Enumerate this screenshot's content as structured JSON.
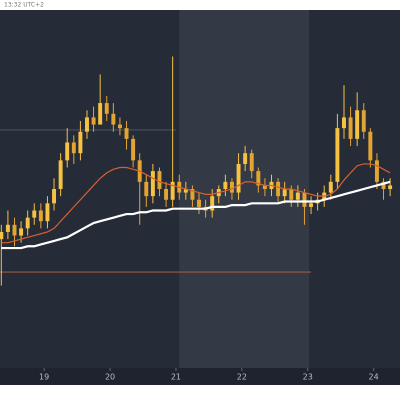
{
  "chart_data": {
    "type": "candlestick",
    "time_label": "13:32 UTC+2",
    "x": [
      18.35,
      18.45,
      18.55,
      18.65,
      18.75,
      18.85,
      18.95,
      19.05,
      19.15,
      19.25,
      19.35,
      19.45,
      19.55,
      19.65,
      19.75,
      19.85,
      19.95,
      20.05,
      20.15,
      20.25,
      20.35,
      20.45,
      20.55,
      20.65,
      20.75,
      20.85,
      20.95,
      21.05,
      21.15,
      21.25,
      21.35,
      21.45,
      21.55,
      21.65,
      21.75,
      21.85,
      21.95,
      22.05,
      22.15,
      22.25,
      22.35,
      22.45,
      22.55,
      22.65,
      22.75,
      22.85,
      22.95,
      23.05,
      23.15,
      23.25,
      23.35,
      23.45,
      23.55,
      23.65,
      23.75,
      23.85,
      23.95,
      24.05,
      24.15,
      24.25
    ],
    "open": [
      36,
      38,
      40,
      37,
      39,
      42,
      44,
      41,
      46,
      50,
      58,
      63,
      60,
      66,
      70,
      68,
      74,
      71,
      68,
      67,
      64,
      58,
      52,
      48,
      55,
      50,
      47,
      52,
      49,
      50,
      47,
      45,
      44,
      48,
      50,
      52,
      49,
      57,
      60,
      55,
      51,
      50,
      52,
      48,
      50,
      47,
      49,
      45,
      46,
      47,
      49,
      52,
      67,
      70,
      64,
      72,
      66,
      58,
      52,
      50
    ],
    "high": [
      40,
      44,
      42,
      41,
      44,
      46,
      46,
      48,
      53,
      60,
      67,
      65,
      69,
      72,
      73,
      82,
      76,
      74,
      70,
      69,
      65,
      60,
      54,
      57,
      56,
      52,
      87,
      54,
      52,
      51,
      49,
      47,
      50,
      51,
      54,
      53,
      60,
      62,
      61,
      56,
      53,
      54,
      53,
      52,
      51,
      51,
      50,
      48,
      49,
      51,
      54,
      71,
      79,
      73,
      77,
      74,
      67,
      60,
      53,
      53
    ],
    "low": [
      23,
      36,
      34,
      35,
      37,
      40,
      39,
      39,
      44,
      48,
      56,
      57,
      58,
      64,
      66,
      68,
      69,
      66,
      65,
      61,
      56,
      40,
      45,
      46,
      48,
      45,
      45,
      47,
      47,
      45,
      43,
      42,
      42,
      46,
      48,
      47,
      47,
      55,
      53,
      49,
      48,
      48,
      46,
      46,
      45,
      45,
      40,
      43,
      44,
      45,
      47,
      50,
      64,
      62,
      62,
      64,
      56,
      50,
      47,
      48
    ],
    "close": [
      38,
      40,
      37,
      39,
      42,
      44,
      41,
      46,
      50,
      58,
      63,
      60,
      66,
      70,
      68,
      74,
      71,
      68,
      67,
      64,
      58,
      52,
      48,
      55,
      50,
      47,
      52,
      49,
      50,
      47,
      45,
      44,
      48,
      50,
      52,
      49,
      57,
      60,
      55,
      51,
      50,
      52,
      48,
      50,
      47,
      49,
      45,
      46,
      47,
      49,
      52,
      67,
      70,
      64,
      72,
      66,
      58,
      52,
      50,
      51
    ],
    "up_color": "#f5c242",
    "down_color": "#e3a532",
    "series": [
      {
        "color": "#d8602e",
        "values": [
          35,
          35,
          35.5,
          36,
          36.5,
          37,
          37.5,
          38,
          39,
          41,
          43,
          45,
          47,
          49,
          51,
          53,
          54.5,
          55.5,
          56,
          56,
          55.5,
          55,
          54,
          53,
          52,
          51.5,
          51,
          50.5,
          50,
          49.5,
          49,
          48.5,
          48.5,
          49,
          49.5,
          50,
          51,
          52,
          52,
          51.5,
          51,
          51,
          50.5,
          50,
          50,
          49.5,
          49,
          48.5,
          48,
          48,
          48.5,
          50,
          52.5,
          54.5,
          56.5,
          57,
          57,
          56.5,
          55.5,
          54.5
        ]
      },
      {
        "color": "#ffffff",
        "values": [
          33.5,
          33.5,
          33.5,
          33.5,
          34,
          34,
          34.5,
          35,
          35.5,
          36,
          36.5,
          37.5,
          38.5,
          39.5,
          40.5,
          41,
          41.5,
          42,
          42.5,
          43,
          43,
          43.5,
          43.5,
          44,
          44,
          44,
          44.5,
          44.5,
          44.5,
          44.5,
          44.5,
          44.5,
          45,
          45,
          45,
          45.5,
          45.5,
          45.5,
          46,
          46,
          46,
          46,
          46,
          46.5,
          46.5,
          46.5,
          46.5,
          46.5,
          46.5,
          47,
          47.5,
          48,
          48.5,
          49,
          49.5,
          50,
          50.5,
          51,
          51.5,
          52
        ]
      }
    ],
    "xlim": [
      18.33,
      24.4
    ],
    "xticks": [
      19,
      20,
      21,
      22,
      23,
      24
    ],
    "ylim": [
      0,
      100
    ],
    "shaded_x": [
      [
        21.05,
        23.02
      ]
    ],
    "hlines": [
      {
        "value": 26.8,
        "color": "#9a5a46",
        "x_end": 23.05
      },
      {
        "value": 66.5,
        "color": "#4a4f5c",
        "x_end": 21.0
      }
    ]
  }
}
